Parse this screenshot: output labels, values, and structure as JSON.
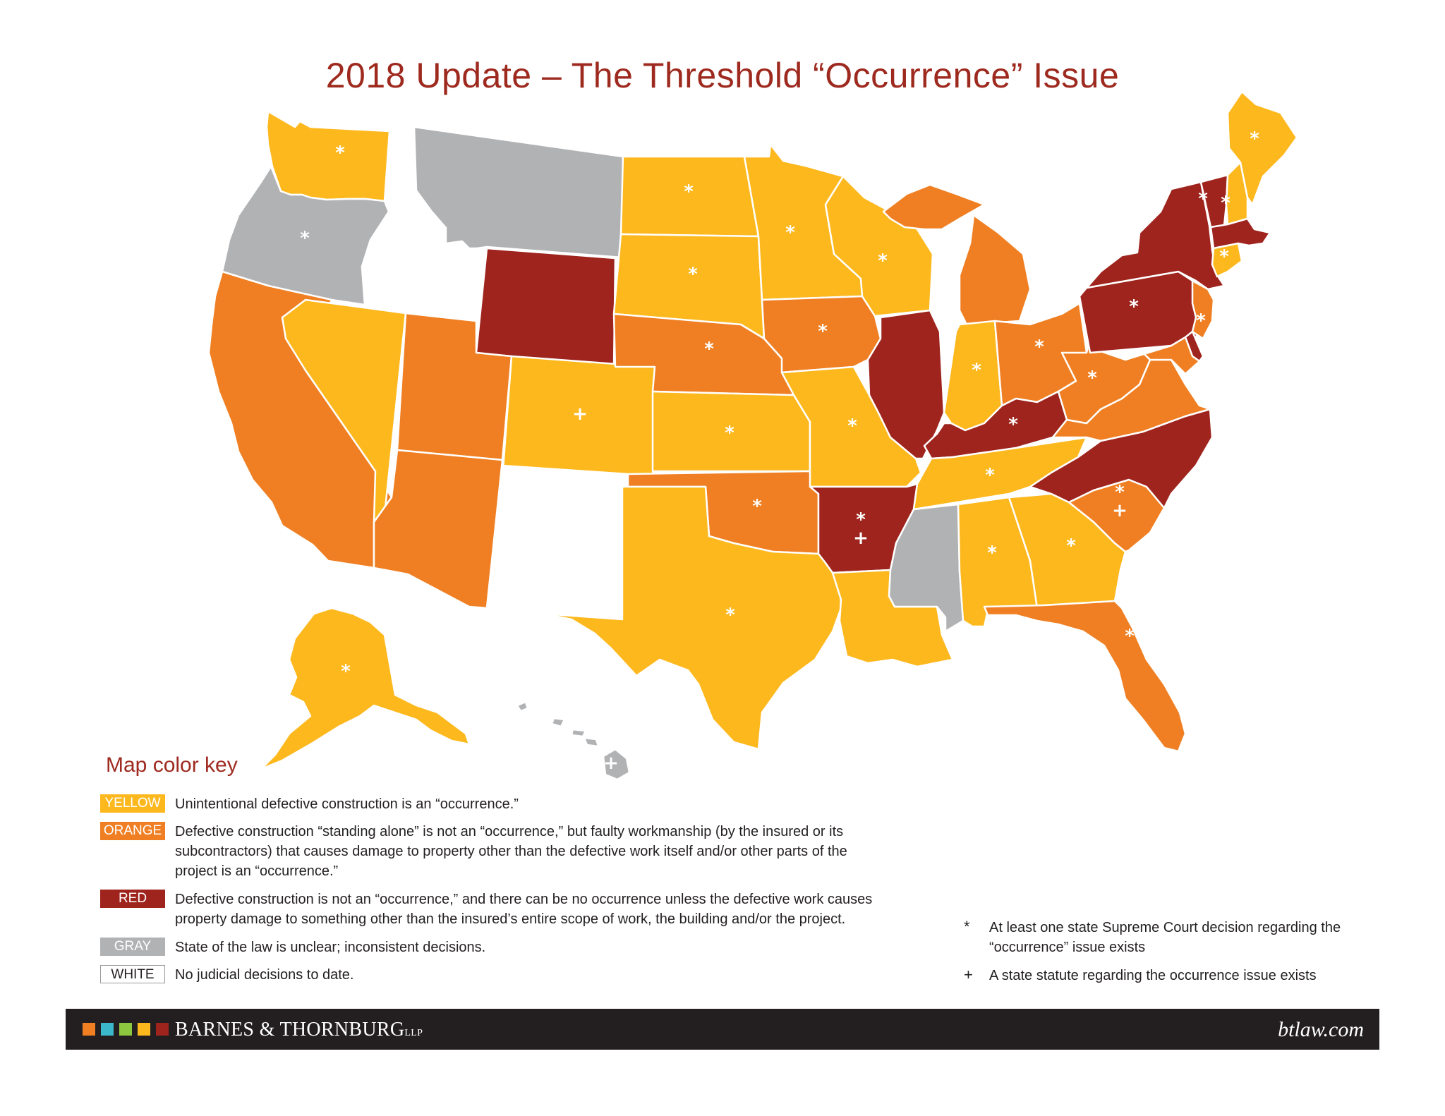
{
  "title": "2018 Update – The Threshold “Occurrence” Issue",
  "colors": {
    "yellow": "#fdb81e",
    "orange": "#ef7f22",
    "red": "#9e241d",
    "gray": "#b1b2b4",
    "white": "#ffffff",
    "title_red": "#9e2a1f",
    "footer": "#231f20"
  },
  "states": [
    {
      "name": "Washington",
      "category": "yellow",
      "markers": "*"
    },
    {
      "name": "Oregon",
      "category": "gray",
      "markers": "*"
    },
    {
      "name": "California",
      "category": "orange",
      "markers": ""
    },
    {
      "name": "Idaho",
      "category": "white",
      "markers": ""
    },
    {
      "name": "Nevada",
      "category": "yellow",
      "markers": ""
    },
    {
      "name": "Montana",
      "category": "gray",
      "markers": ""
    },
    {
      "name": "Wyoming",
      "category": "red",
      "markers": ""
    },
    {
      "name": "Utah",
      "category": "orange",
      "markers": ""
    },
    {
      "name": "Arizona",
      "category": "orange",
      "markers": ""
    },
    {
      "name": "Colorado",
      "category": "yellow",
      "markers": "+"
    },
    {
      "name": "New Mexico",
      "category": "white",
      "markers": ""
    },
    {
      "name": "North Dakota",
      "category": "yellow",
      "markers": "*"
    },
    {
      "name": "South Dakota",
      "category": "yellow",
      "markers": "*"
    },
    {
      "name": "Nebraska",
      "category": "orange",
      "markers": "*"
    },
    {
      "name": "Kansas",
      "category": "yellow",
      "markers": "*"
    },
    {
      "name": "Oklahoma",
      "category": "orange",
      "markers": "*"
    },
    {
      "name": "Texas",
      "category": "yellow",
      "markers": "*"
    },
    {
      "name": "Minnesota",
      "category": "yellow",
      "markers": "*"
    },
    {
      "name": "Iowa",
      "category": "orange",
      "markers": "*"
    },
    {
      "name": "Missouri",
      "category": "yellow",
      "markers": "*"
    },
    {
      "name": "Arkansas",
      "category": "red",
      "markers": "*+"
    },
    {
      "name": "Louisiana",
      "category": "yellow",
      "markers": ""
    },
    {
      "name": "Wisconsin",
      "category": "yellow",
      "markers": "*"
    },
    {
      "name": "Illinois",
      "category": "red",
      "markers": ""
    },
    {
      "name": "Michigan",
      "category": "orange",
      "markers": ""
    },
    {
      "name": "Indiana",
      "category": "yellow",
      "markers": "*"
    },
    {
      "name": "Ohio",
      "category": "orange",
      "markers": "*"
    },
    {
      "name": "Kentucky",
      "category": "red",
      "markers": "*"
    },
    {
      "name": "Tennessee",
      "category": "yellow",
      "markers": "*"
    },
    {
      "name": "Mississippi",
      "category": "gray",
      "markers": ""
    },
    {
      "name": "Alabama",
      "category": "yellow",
      "markers": "*"
    },
    {
      "name": "Georgia",
      "category": "yellow",
      "markers": "*"
    },
    {
      "name": "Florida",
      "category": "orange",
      "markers": "*"
    },
    {
      "name": "South Carolina",
      "category": "orange",
      "markers": "*+"
    },
    {
      "name": "North Carolina",
      "category": "red",
      "markers": ""
    },
    {
      "name": "Virginia",
      "category": "orange",
      "markers": ""
    },
    {
      "name": "West Virginia",
      "category": "orange",
      "markers": "*"
    },
    {
      "name": "Pennsylvania",
      "category": "red",
      "markers": "*"
    },
    {
      "name": "New York",
      "category": "red",
      "markers": ""
    },
    {
      "name": "Vermont",
      "category": "red",
      "markers": "*"
    },
    {
      "name": "New Hampshire",
      "category": "yellow",
      "markers": "*"
    },
    {
      "name": "Maine",
      "category": "yellow",
      "markers": "*"
    },
    {
      "name": "Massachusetts",
      "category": "red",
      "markers": ""
    },
    {
      "name": "Connecticut",
      "category": "yellow",
      "markers": "*"
    },
    {
      "name": "New Jersey",
      "category": "orange",
      "markers": "*"
    },
    {
      "name": "Delaware",
      "category": "red",
      "markers": ""
    },
    {
      "name": "Maryland",
      "category": "orange",
      "markers": ""
    },
    {
      "name": "Alaska",
      "category": "yellow",
      "markers": "*"
    },
    {
      "name": "Hawaii",
      "category": "gray",
      "markers": "+"
    }
  ],
  "key": {
    "title": "Map color key",
    "items": [
      {
        "label": "YELLOW",
        "category": "yellow",
        "text": "Unintentional defective construction is an “occurrence.”"
      },
      {
        "label": "ORANGE",
        "category": "orange",
        "text": "Defective construction “standing alone” is not an “occurrence,” but faulty workmanship (by the insured or its subcontractors) that causes damage to property other than the defective work itself and/or other parts of the project is an “occurrence.”"
      },
      {
        "label": "RED",
        "category": "red",
        "text": "Defective construction is not an “occurrence,” and there can be no occurrence unless the defective work causes property damage to something other than the insured’s entire scope of work, the building and/or the project."
      },
      {
        "label": "GRAY",
        "category": "gray",
        "text": "State of the law is unclear; inconsistent decisions."
      },
      {
        "label": "WHITE",
        "category": "white",
        "text": "No judicial decisions to date."
      }
    ]
  },
  "notes": [
    {
      "symbol": "*",
      "text": "At least one state Supreme Court decision regarding the “occurrence” issue exists"
    },
    {
      "symbol": "+",
      "text": "A state statute regarding the occurrence issue exists"
    }
  ],
  "footer": {
    "brand": "BARNES & THORNBURG",
    "brand_suffix": "LLP",
    "site": "btlaw.com",
    "squares": [
      "#ef7f22",
      "#3bb8c9",
      "#8dc63f",
      "#fdb81e",
      "#9e241d"
    ]
  }
}
